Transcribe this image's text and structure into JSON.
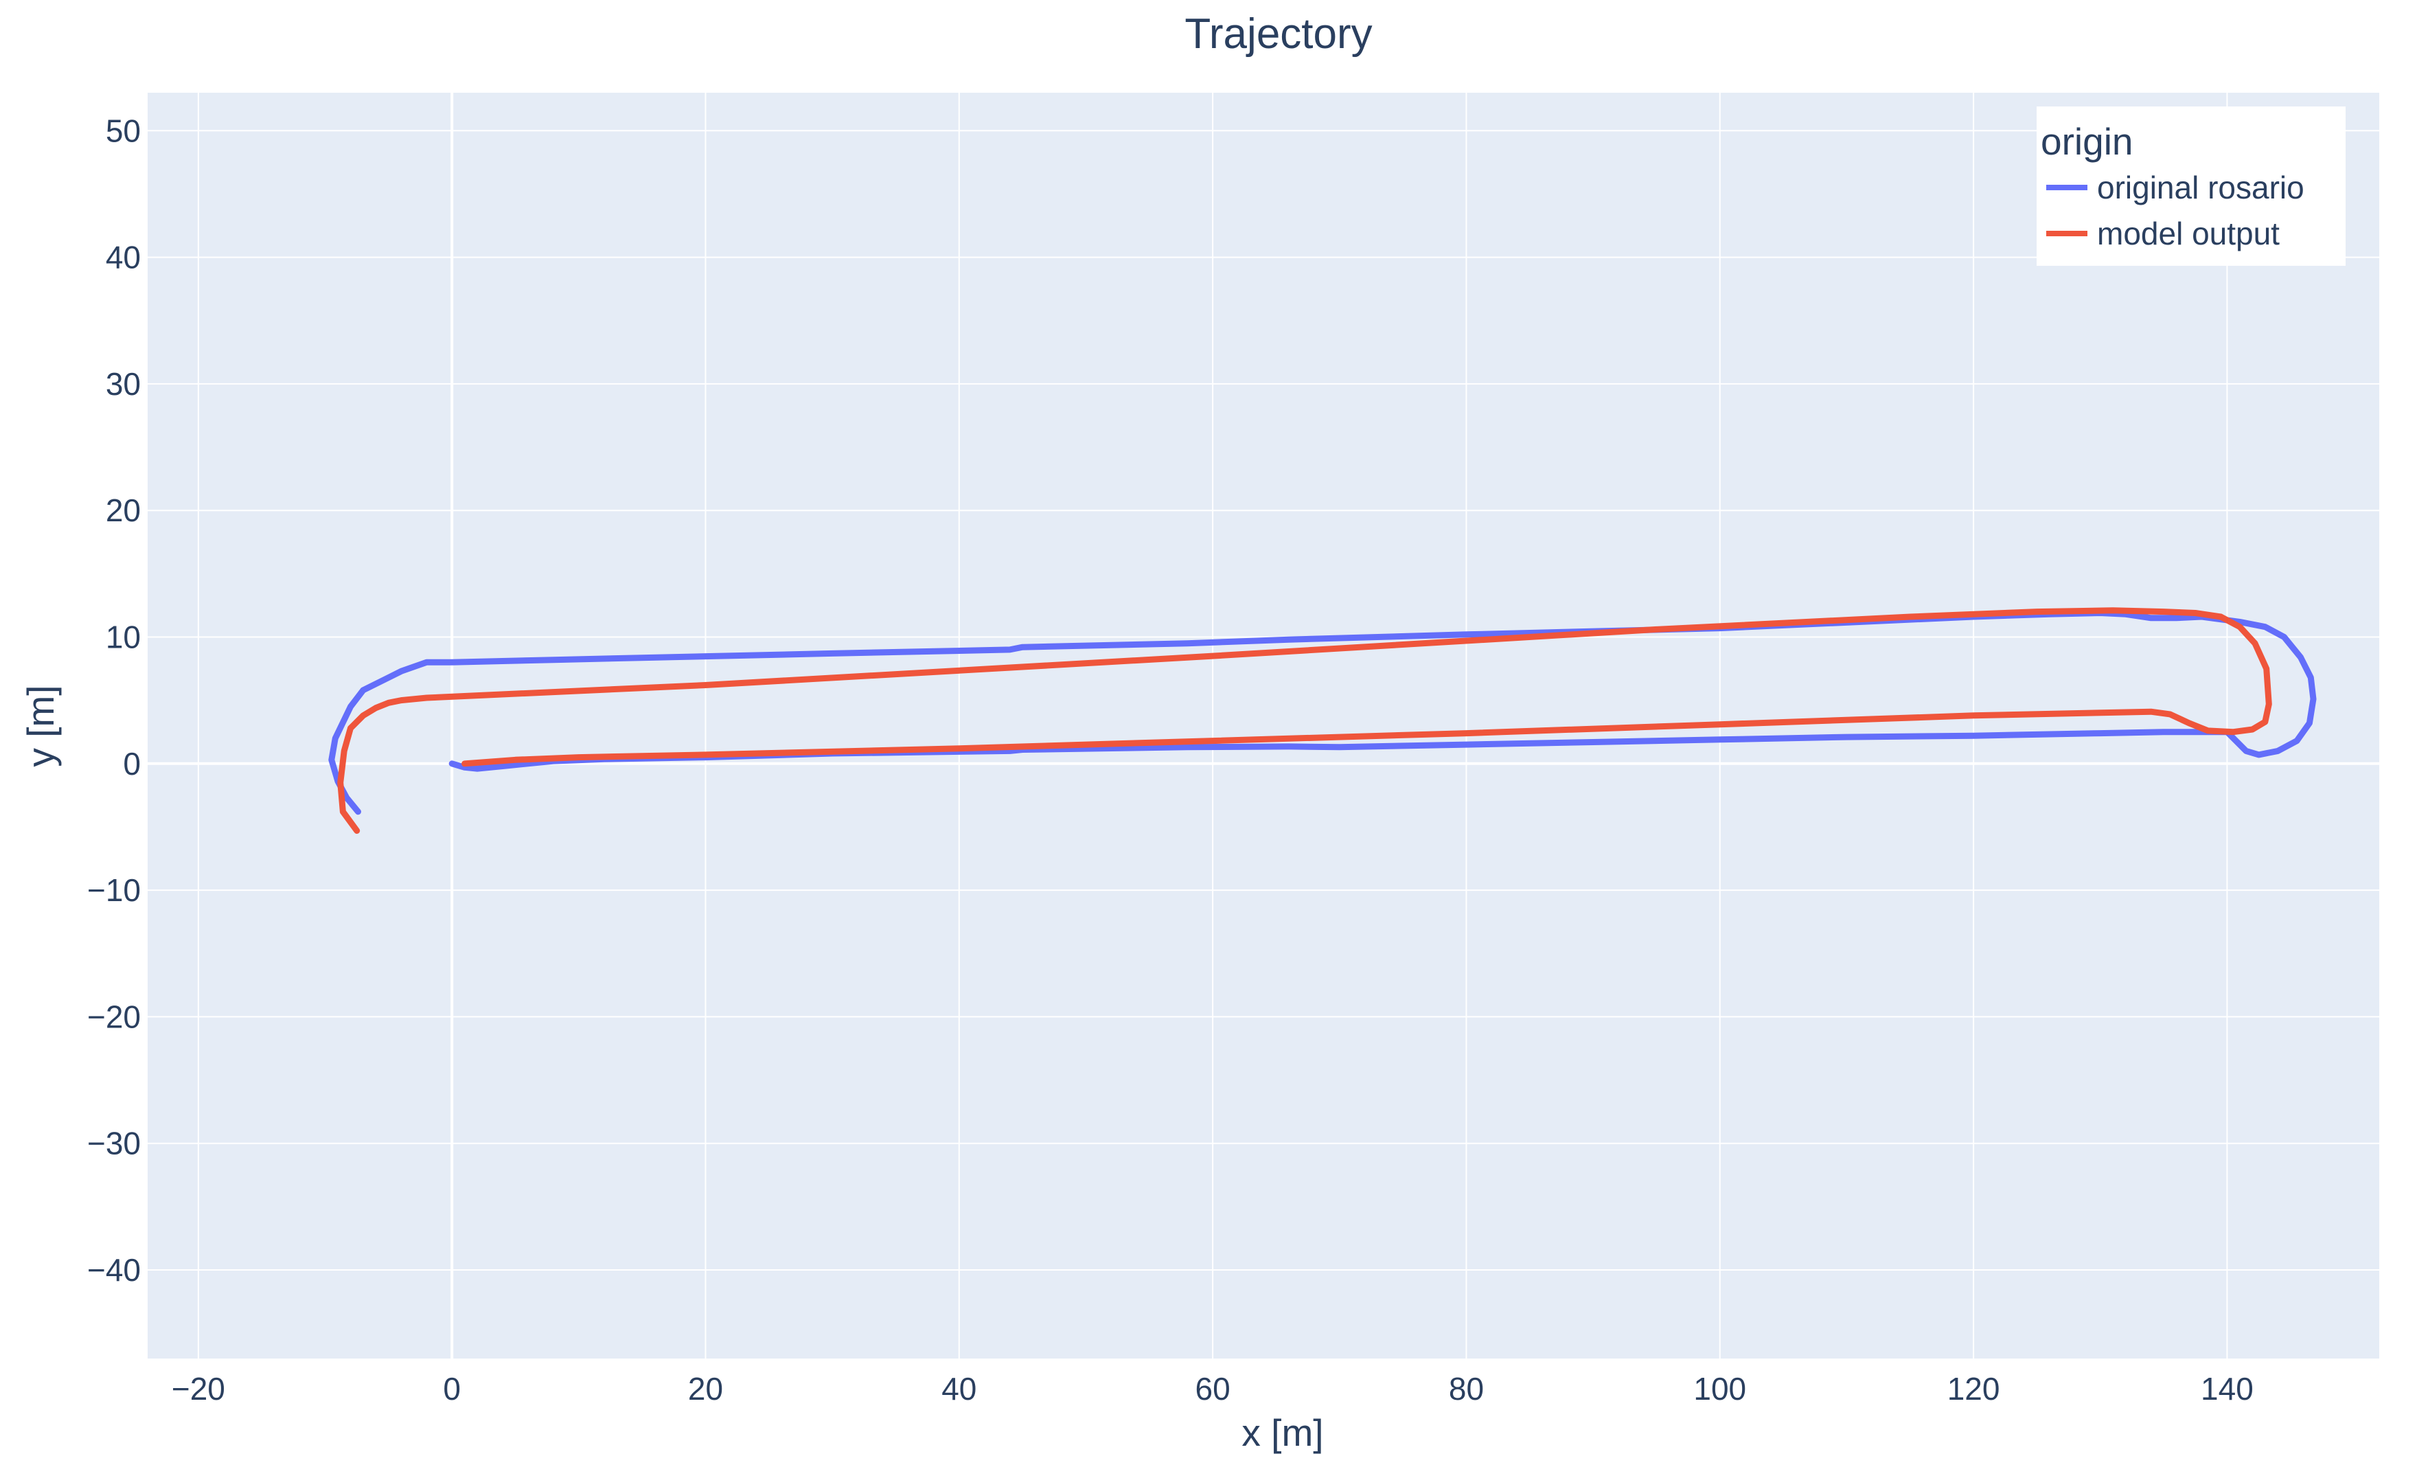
{
  "chart_data": {
    "type": "line",
    "title": "Trajectory",
    "xlabel": "x [m]",
    "ylabel": "y [m]",
    "xlim": [
      -24,
      152
    ],
    "ylim": [
      -47,
      53
    ],
    "xticks": [
      -20,
      0,
      20,
      40,
      60,
      80,
      100,
      120,
      140
    ],
    "yticks": [
      -40,
      -30,
      -20,
      -10,
      0,
      10,
      20,
      30,
      40,
      50
    ],
    "xtick_labels": [
      "−20",
      "0",
      "20",
      "40",
      "60",
      "80",
      "100",
      "120",
      "140"
    ],
    "ytick_labels": [
      "−40",
      "−30",
      "−20",
      "−10",
      "0",
      "10",
      "20",
      "30",
      "40",
      "50"
    ],
    "grid": true,
    "legend": {
      "title": "origin",
      "position": "top-right"
    },
    "colors": {
      "plot_bg": "#e5ecf6",
      "grid": "#ffffff",
      "text": "#2a3f5f"
    },
    "series": [
      {
        "name": "original rosario",
        "color": "#636efa",
        "x": [
          0,
          1,
          2,
          4,
          6,
          8,
          12,
          20,
          30,
          44,
          45,
          58,
          66,
          70,
          80,
          90,
          100,
          110,
          120,
          130,
          135,
          140,
          141.5,
          142.5,
          144,
          145.5,
          146.5,
          146.8,
          146.6,
          145.8,
          144.5,
          143,
          141,
          138,
          136,
          134,
          132,
          130,
          126,
          120,
          100,
          80,
          66,
          58,
          45,
          44,
          30,
          8,
          0,
          -2,
          -4,
          -5,
          -7,
          -8,
          -9.2,
          -9.5,
          -9,
          -8.3,
          -7.4
        ],
        "y": [
          0,
          -0.3,
          -0.4,
          -0.2,
          0,
          0.2,
          0.35,
          0.5,
          0.8,
          1.0,
          1.1,
          1.3,
          1.35,
          1.3,
          1.5,
          1.7,
          1.9,
          2.1,
          2.2,
          2.4,
          2.5,
          2.5,
          1.0,
          0.7,
          1.0,
          1.8,
          3.2,
          5.1,
          6.8,
          8.4,
          10.0,
          10.8,
          11.2,
          11.6,
          11.5,
          11.5,
          11.8,
          11.9,
          11.8,
          11.6,
          10.7,
          10.2,
          9.8,
          9.5,
          9.2,
          9.0,
          8.7,
          8.2,
          8.0,
          8.0,
          7.3,
          6.8,
          5.8,
          4.5,
          2.0,
          0.3,
          -1.4,
          -2.7,
          -3.8
        ]
      },
      {
        "name": "model output",
        "color": "#ef553b",
        "x": [
          1,
          5,
          10,
          20,
          40,
          60,
          80,
          100,
          120,
          134,
          135.5,
          137,
          138.5,
          140.5,
          142,
          143,
          143.3,
          143.1,
          142.2,
          141,
          139.5,
          137.5,
          135,
          131,
          125,
          115,
          95,
          60,
          20,
          -2,
          -4,
          -5,
          -6,
          -7,
          -8,
          -8.5,
          -8.8,
          -8.6,
          -7.5
        ],
        "y": [
          0,
          0.3,
          0.5,
          0.7,
          1.2,
          1.8,
          2.4,
          3.1,
          3.8,
          4.1,
          3.9,
          3.2,
          2.6,
          2.5,
          2.7,
          3.3,
          4.7,
          7.5,
          9.5,
          10.8,
          11.6,
          11.9,
          12.0,
          12.1,
          12.0,
          11.6,
          10.6,
          8.5,
          6.2,
          5.2,
          5.0,
          4.8,
          4.4,
          3.8,
          2.8,
          1.0,
          -1.5,
          -3.8,
          -5.3
        ]
      }
    ]
  }
}
